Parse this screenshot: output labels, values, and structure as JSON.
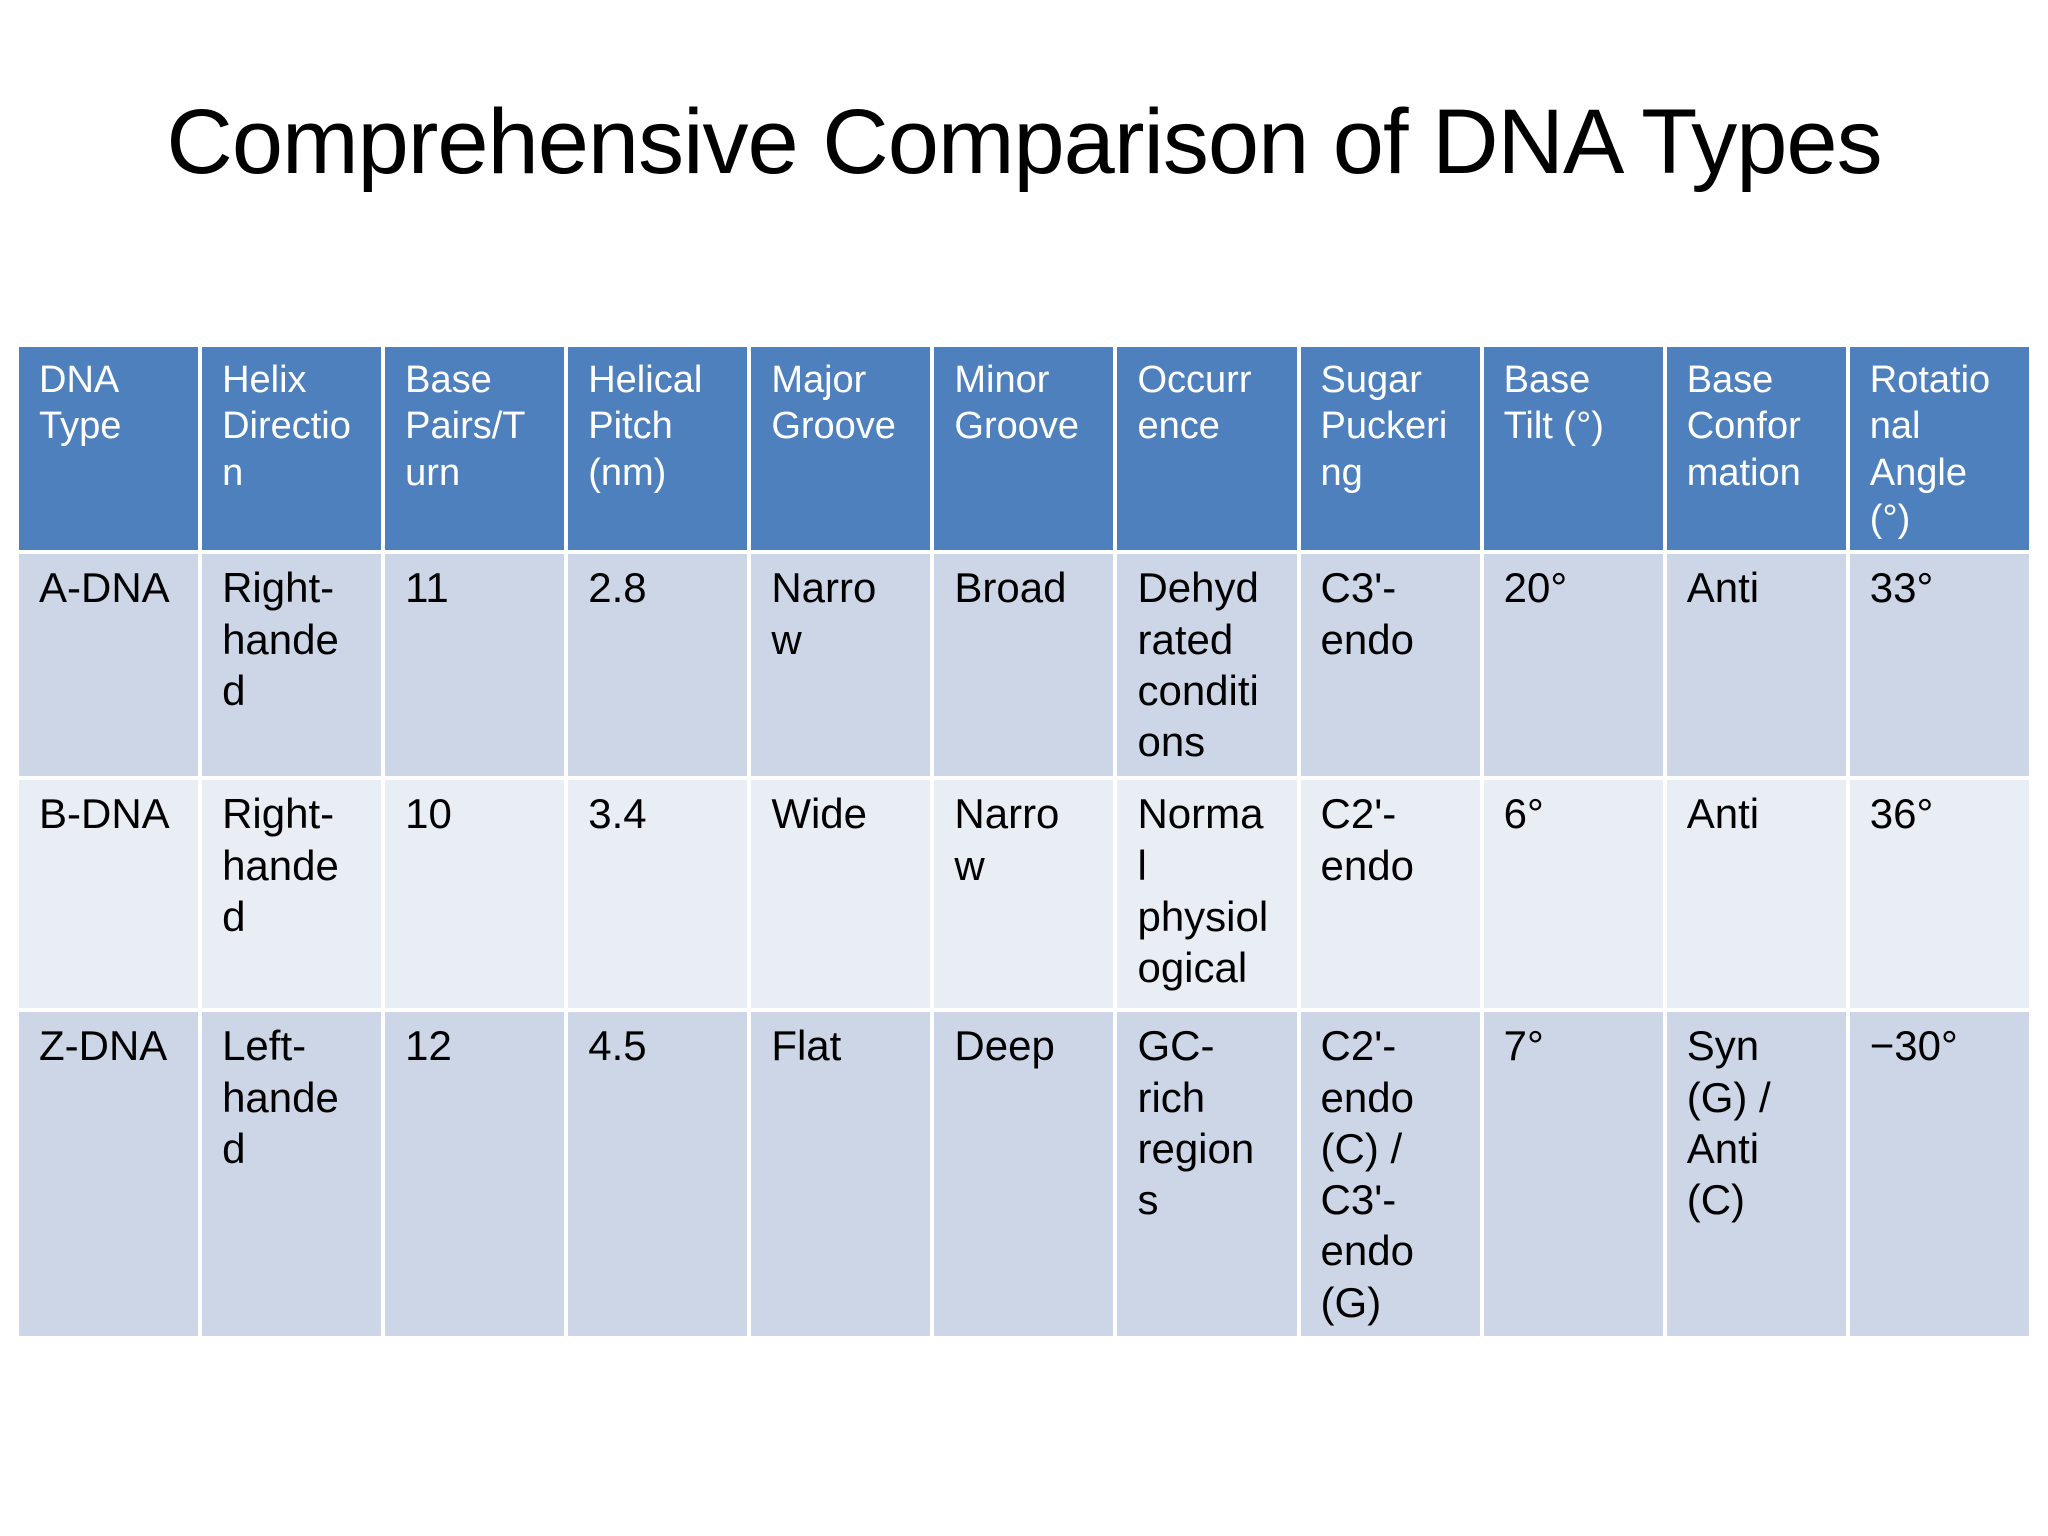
{
  "slide": {
    "title": "Comprehensive Comparison of DNA Types"
  },
  "table": {
    "headers": [
      "DNA Type",
      "Helix Direction",
      "Base Pairs/Turn",
      "Helical Pitch (nm)",
      "Major Groove",
      "Minor Groove",
      "Occurrence",
      "Sugar Puckering",
      "Base Tilt (°)",
      "Base Conformation",
      "Rotational Angle (°)"
    ],
    "rows": [
      [
        "A-DNA",
        "Right-handed",
        "11",
        "2.8",
        "Narrow",
        "Broad",
        "Dehydrated conditions",
        "C3'-endo",
        "20°",
        "Anti",
        "33°"
      ],
      [
        "B-DNA",
        "Right-handed",
        "10",
        "3.4",
        "Wide",
        "Narrow",
        "Normal physiological",
        "C2'-endo",
        "6°",
        "Anti",
        "36°"
      ],
      [
        "Z-DNA",
        "Left-handed",
        "12",
        "4.5",
        "Flat",
        "Deep",
        "GC-rich regions",
        "C2'-endo (C) / C3'-endo (G)",
        "7°",
        "Syn (G) / Anti (C)",
        "−30°"
      ]
    ]
  },
  "colors": {
    "header_bg": "#4E80BD",
    "header_text": "#FFFFFF",
    "row_odd_bg": "#CDD6E7",
    "row_even_bg": "#E9EDF4",
    "body_text": "#000000",
    "title_text": "#000000",
    "page_bg": "#FFFFFF"
  }
}
